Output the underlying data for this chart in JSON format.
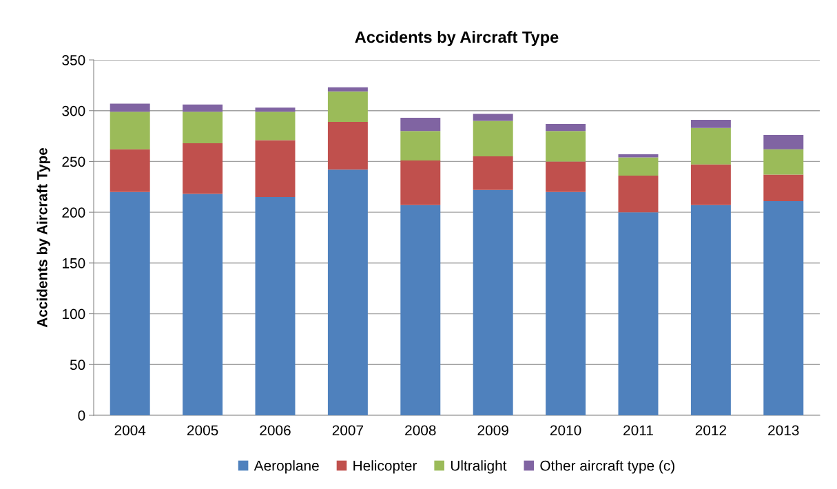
{
  "chart_data": {
    "type": "bar",
    "stacked": true,
    "title": "Accidents by Aircraft Type",
    "ylabel": "Accidents by Aircraft Type",
    "categories": [
      "2004",
      "2005",
      "2006",
      "2007",
      "2008",
      "2009",
      "2010",
      "2011",
      "2012",
      "2013"
    ],
    "series": [
      {
        "name": "Aeroplane",
        "color": "#4f81bd",
        "values": [
          220,
          218,
          215,
          242,
          207,
          222,
          220,
          200,
          207,
          211
        ]
      },
      {
        "name": "Helicopter",
        "color": "#c0504d",
        "values": [
          42,
          50,
          56,
          47,
          44,
          33,
          30,
          36,
          40,
          26
        ]
      },
      {
        "name": "Ultralight",
        "color": "#9bbb59",
        "values": [
          37,
          31,
          28,
          30,
          29,
          35,
          30,
          18,
          36,
          25
        ]
      },
      {
        "name": "Other aircraft type (c)",
        "color": "#8064a2",
        "values": [
          8,
          7,
          4,
          4,
          13,
          7,
          7,
          3,
          8,
          14
        ]
      }
    ],
    "ylim": [
      0,
      350
    ],
    "yticks": [
      0,
      50,
      100,
      150,
      200,
      250,
      300,
      350
    ],
    "grid": "y",
    "legend": "bottom"
  }
}
